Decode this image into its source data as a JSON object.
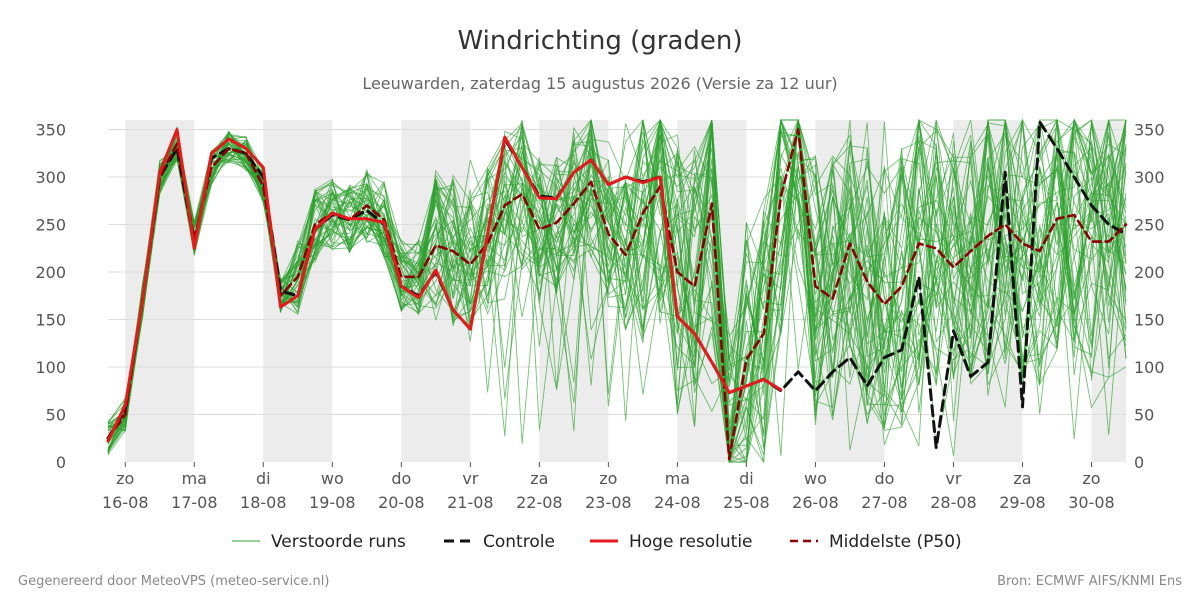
{
  "chart_data": {
    "type": "line",
    "title": "Windrichting (graden)",
    "subtitle": "Leeuwarden, zaterdag 15 augustus 2026 (Versie za 12 uur)",
    "ylim": [
      0,
      360
    ],
    "yticks": [
      0,
      50,
      100,
      150,
      200,
      250,
      300,
      350
    ],
    "xlim": [
      -0.25,
      14.5
    ],
    "xticks": [
      {
        "x": 0,
        "day": "zo",
        "date": "16-08"
      },
      {
        "x": 1,
        "day": "ma",
        "date": "17-08"
      },
      {
        "x": 2,
        "day": "di",
        "date": "18-08"
      },
      {
        "x": 3,
        "day": "wo",
        "date": "19-08"
      },
      {
        "x": 4,
        "day": "do",
        "date": "20-08"
      },
      {
        "x": 5,
        "day": "vr",
        "date": "21-08"
      },
      {
        "x": 6,
        "day": "za",
        "date": "22-08"
      },
      {
        "x": 7,
        "day": "zo",
        "date": "23-08"
      },
      {
        "x": 8,
        "day": "ma",
        "date": "24-08"
      },
      {
        "x": 9,
        "day": "di",
        "date": "25-08"
      },
      {
        "x": 10,
        "day": "wo",
        "date": "26-08"
      },
      {
        "x": 11,
        "day": "do",
        "date": "27-08"
      },
      {
        "x": 12,
        "day": "vr",
        "date": "28-08"
      },
      {
        "x": 13,
        "day": "za",
        "date": "29-08"
      },
      {
        "x": 14,
        "day": "zo",
        "date": "30-08"
      }
    ],
    "night_bands": [
      [
        0,
        1
      ],
      [
        2,
        3
      ],
      [
        4,
        5
      ],
      [
        6,
        7
      ],
      [
        8,
        9
      ],
      [
        10,
        11
      ],
      [
        12,
        13
      ],
      [
        14,
        14.5
      ]
    ],
    "grid": true,
    "legend_position": "bottom",
    "colors": {
      "ensemble": "#2ca02c",
      "control": "#111111",
      "high_res": "#e41a1c",
      "median": "#8b0000",
      "night": "#ececec",
      "grid": "#dddddd"
    },
    "series": [
      {
        "name": "Controle",
        "style": "dashed",
        "points": [
          [
            -0.25,
            25
          ],
          [
            0,
            55
          ],
          [
            0.25,
            170
          ],
          [
            0.5,
            300
          ],
          [
            0.75,
            330
          ],
          [
            1,
            230
          ],
          [
            1.25,
            320
          ],
          [
            1.5,
            330
          ],
          [
            1.75,
            325
          ],
          [
            2,
            300
          ],
          [
            2.25,
            180
          ],
          [
            2.5,
            175
          ],
          [
            2.75,
            245
          ],
          [
            3,
            260
          ],
          [
            3.25,
            255
          ],
          [
            3.5,
            265
          ],
          [
            3.75,
            250
          ],
          [
            4,
            185
          ],
          [
            4.25,
            175
          ],
          [
            4.5,
            200
          ],
          [
            4.75,
            160
          ],
          [
            5,
            140
          ],
          [
            5.25,
            240
          ],
          [
            5.5,
            340
          ],
          [
            5.75,
            310
          ],
          [
            6,
            280
          ],
          [
            6.25,
            278
          ],
          [
            6.5,
            305
          ],
          [
            6.75,
            318
          ],
          [
            7,
            292
          ],
          [
            7.25,
            300
          ],
          [
            7.5,
            295
          ],
          [
            7.75,
            300
          ],
          [
            8,
            153
          ],
          [
            8.25,
            135
          ],
          [
            8.5,
            105
          ],
          [
            8.75,
            73
          ],
          [
            9,
            80
          ],
          [
            9.25,
            87
          ],
          [
            9.5,
            75
          ],
          [
            9.75,
            95
          ],
          [
            10,
            75
          ],
          [
            10.25,
            95
          ],
          [
            10.5,
            110
          ],
          [
            10.75,
            80
          ],
          [
            11,
            110
          ],
          [
            11.25,
            118
          ],
          [
            11.5,
            195
          ],
          [
            11.75,
            15
          ],
          [
            12,
            138
          ],
          [
            12.25,
            90
          ],
          [
            12.5,
            105
          ],
          [
            12.75,
            305
          ],
          [
            13,
            58
          ],
          [
            13.25,
            358
          ],
          [
            13.5,
            330
          ],
          [
            13.75,
            300
          ],
          [
            14,
            270
          ],
          [
            14.25,
            250
          ],
          [
            14.5,
            240
          ]
        ]
      },
      {
        "name": "Hoge resolutie",
        "style": "solid",
        "points": [
          [
            -0.25,
            22
          ],
          [
            0,
            60
          ],
          [
            0.25,
            170
          ],
          [
            0.5,
            305
          ],
          [
            0.75,
            350
          ],
          [
            1,
            225
          ],
          [
            1.25,
            325
          ],
          [
            1.5,
            340
          ],
          [
            1.75,
            330
          ],
          [
            2,
            310
          ],
          [
            2.25,
            163
          ],
          [
            2.5,
            175
          ],
          [
            2.75,
            245
          ],
          [
            3,
            262
          ],
          [
            3.25,
            256
          ],
          [
            3.5,
            256
          ],
          [
            3.75,
            252
          ],
          [
            4,
            185
          ],
          [
            4.25,
            173
          ],
          [
            4.5,
            202
          ],
          [
            4.75,
            160
          ],
          [
            5,
            140
          ],
          [
            5.25,
            240
          ],
          [
            5.5,
            342
          ],
          [
            5.75,
            310
          ],
          [
            6,
            278
          ],
          [
            6.25,
            277
          ],
          [
            6.5,
            305
          ],
          [
            6.75,
            318
          ],
          [
            7,
            292
          ],
          [
            7.25,
            300
          ],
          [
            7.5,
            294
          ],
          [
            7.75,
            300
          ],
          [
            8,
            153
          ],
          [
            8.25,
            135
          ],
          [
            8.5,
            105
          ],
          [
            8.75,
            73
          ],
          [
            9,
            80
          ],
          [
            9.25,
            87
          ],
          [
            9.5,
            76
          ]
        ]
      },
      {
        "name": "Middelste (P50)",
        "style": "dashed",
        "points": [
          [
            -0.25,
            25
          ],
          [
            0,
            50
          ],
          [
            0.25,
            170
          ],
          [
            0.5,
            300
          ],
          [
            0.75,
            335
          ],
          [
            1,
            235
          ],
          [
            1.25,
            310
          ],
          [
            1.5,
            330
          ],
          [
            1.75,
            325
          ],
          [
            2,
            290
          ],
          [
            2.25,
            175
          ],
          [
            2.5,
            195
          ],
          [
            2.75,
            250
          ],
          [
            3,
            262
          ],
          [
            3.25,
            255
          ],
          [
            3.5,
            270
          ],
          [
            3.75,
            255
          ],
          [
            4,
            195
          ],
          [
            4.25,
            195
          ],
          [
            4.5,
            228
          ],
          [
            4.75,
            222
          ],
          [
            5,
            208
          ],
          [
            5.25,
            230
          ],
          [
            5.5,
            270
          ],
          [
            5.75,
            282
          ],
          [
            6,
            245
          ],
          [
            6.25,
            252
          ],
          [
            6.5,
            272
          ],
          [
            6.75,
            295
          ],
          [
            7,
            240
          ],
          [
            7.25,
            218
          ],
          [
            7.5,
            262
          ],
          [
            7.75,
            290
          ],
          [
            8,
            200
          ],
          [
            8.25,
            185
          ],
          [
            8.5,
            272
          ],
          [
            8.75,
            3
          ],
          [
            9,
            108
          ],
          [
            9.25,
            135
          ],
          [
            9.5,
            280
          ],
          [
            9.75,
            350
          ],
          [
            10,
            185
          ],
          [
            10.25,
            172
          ],
          [
            10.5,
            230
          ],
          [
            10.75,
            190
          ],
          [
            11,
            166
          ],
          [
            11.25,
            185
          ],
          [
            11.5,
            230
          ],
          [
            11.75,
            225
          ],
          [
            12,
            205
          ],
          [
            12.25,
            222
          ],
          [
            12.5,
            238
          ],
          [
            12.75,
            250
          ],
          [
            13,
            230
          ],
          [
            13.25,
            222
          ],
          [
            13.5,
            256
          ],
          [
            13.75,
            260
          ],
          [
            14,
            232
          ],
          [
            14.25,
            232
          ],
          [
            14.5,
            250
          ]
        ]
      }
    ]
  },
  "legend": [
    {
      "key": "ensemble",
      "label": "Verstoorde runs"
    },
    {
      "key": "control",
      "label": "Controle"
    },
    {
      "key": "high_res",
      "label": "Hoge resolutie"
    },
    {
      "key": "median",
      "label": "Middelste (P50)"
    }
  ],
  "footer": {
    "left": "Gegenereerd door MeteoVPS (meteo-service.nl)",
    "right": "Bron: ECMWF AIFS/KNMI Ens"
  }
}
